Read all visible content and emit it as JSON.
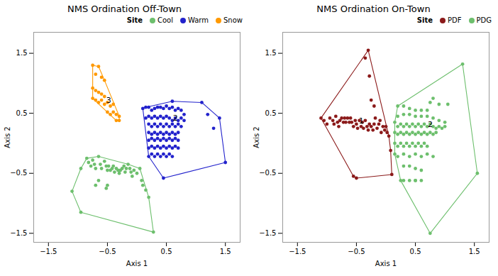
{
  "chart_data": [
    {
      "type": "scatter",
      "title": "NMS Ordination Off-Town",
      "xlabel": "Axis 1",
      "ylabel": "Axis 2",
      "xlim": [
        -1.75,
        1.75
      ],
      "ylim": [
        -1.65,
        1.85
      ],
      "xticks": [
        -1.5,
        -0.5,
        0.5,
        1.5
      ],
      "yticks": [
        -1.5,
        -0.5,
        0.5,
        1.5
      ],
      "legend": "upper right",
      "legend_title": "Site",
      "series": [
        {
          "name": "Cool",
          "color": "#6dbf6d",
          "x": [
            -1.1,
            -0.95,
            -0.85,
            -0.82,
            -0.78,
            -0.75,
            -0.72,
            -0.7,
            -0.65,
            -0.62,
            -0.6,
            -0.55,
            -0.52,
            -0.5,
            -0.48,
            -0.45,
            -0.42,
            -0.4,
            -0.38,
            -0.35,
            -0.32,
            -0.3,
            -0.28,
            -0.25,
            -0.22,
            -0.2,
            -0.18,
            -0.15,
            -0.12,
            -0.1,
            -0.08,
            -0.05,
            0.0,
            0.05,
            0.08,
            0.1,
            0.15,
            0.2,
            -0.7,
            -0.65,
            -0.5,
            -0.52,
            -0.95,
            0.28
          ],
          "y": [
            -0.8,
            -0.42,
            -0.25,
            -0.32,
            -0.38,
            -0.28,
            -0.35,
            -0.42,
            -0.22,
            -0.35,
            -0.42,
            -0.3,
            -0.38,
            -0.45,
            -0.38,
            -0.45,
            -0.42,
            -0.38,
            -0.48,
            -0.42,
            -0.45,
            -0.5,
            -0.45,
            -0.42,
            -0.38,
            -0.48,
            -0.42,
            -0.35,
            -0.42,
            -0.48,
            -0.55,
            -0.45,
            -0.5,
            -0.42,
            -0.62,
            -0.7,
            -0.78,
            -0.9,
            -0.7,
            -0.62,
            -0.7,
            -0.75,
            -1.15,
            -1.48
          ]
        },
        {
          "name": "Warm",
          "color": "#2222cc",
          "x": [
            0.1,
            0.15,
            0.2,
            0.25,
            0.3,
            0.35,
            0.4,
            0.45,
            0.5,
            0.55,
            0.6,
            0.65,
            0.7,
            0.75,
            0.8,
            0.15,
            0.2,
            0.25,
            0.3,
            0.35,
            0.4,
            0.45,
            0.5,
            0.55,
            0.6,
            0.65,
            0.7,
            0.75,
            0.8,
            0.2,
            0.25,
            0.3,
            0.35,
            0.4,
            0.45,
            0.5,
            0.55,
            0.6,
            0.65,
            0.7,
            0.75,
            0.2,
            0.25,
            0.3,
            0.35,
            0.4,
            0.45,
            0.5,
            0.55,
            0.6,
            0.65,
            0.7,
            0.2,
            0.25,
            0.3,
            0.35,
            0.4,
            0.45,
            0.5,
            0.55,
            0.6,
            0.65,
            0.7,
            0.2,
            0.25,
            0.3,
            0.35,
            0.4,
            0.45,
            0.5,
            0.55,
            0.6,
            0.65,
            0.7,
            0.2,
            0.25,
            0.3,
            0.35,
            0.4,
            0.45,
            0.5,
            0.55,
            0.6,
            1.1,
            1.2,
            1.3,
            1.4,
            1.5,
            0.45,
            0.6
          ],
          "y": [
            0.58,
            0.6,
            0.6,
            0.55,
            0.58,
            0.6,
            0.6,
            0.58,
            0.62,
            0.58,
            0.6,
            0.55,
            0.58,
            0.55,
            0.48,
            0.42,
            0.45,
            0.42,
            0.45,
            0.42,
            0.45,
            0.42,
            0.45,
            0.42,
            0.38,
            0.42,
            0.38,
            0.42,
            0.38,
            0.32,
            0.28,
            0.32,
            0.28,
            0.32,
            0.28,
            0.32,
            0.28,
            0.32,
            0.28,
            0.32,
            0.28,
            0.18,
            0.15,
            0.18,
            0.15,
            0.18,
            0.15,
            0.18,
            0.15,
            0.18,
            0.15,
            0.18,
            0.05,
            0.08,
            0.05,
            0.08,
            0.05,
            0.08,
            0.05,
            0.08,
            0.05,
            0.08,
            0.05,
            -0.08,
            -0.05,
            -0.08,
            -0.05,
            -0.08,
            -0.05,
            -0.08,
            -0.05,
            -0.08,
            -0.05,
            -0.08,
            -0.22,
            -0.18,
            -0.22,
            -0.18,
            -0.22,
            -0.18,
            -0.22,
            -0.18,
            -0.22,
            0.68,
            0.48,
            0.25,
            0.42,
            -0.32,
            -0.58,
            0.7
          ]
        },
        {
          "name": "Snow",
          "color": "#ff9900",
          "x": [
            -0.75,
            -0.65,
            -0.7,
            -0.6,
            -0.55,
            -0.75,
            -0.7,
            -0.65,
            -0.6,
            -0.55,
            -0.75,
            -0.7,
            -0.65,
            -0.6,
            -0.55,
            -0.5,
            -0.45,
            -0.4,
            -0.5,
            -0.45,
            -0.4,
            -0.35,
            -0.3,
            -0.35,
            -0.3
          ],
          "y": [
            1.3,
            1.28,
            1.15,
            1.1,
            1.05,
            0.92,
            0.88,
            0.85,
            0.82,
            0.78,
            0.75,
            0.72,
            0.68,
            0.72,
            0.65,
            0.68,
            0.62,
            0.65,
            0.52,
            0.48,
            0.52,
            0.48,
            0.45,
            0.38,
            0.38
          ]
        }
      ],
      "centroids": [
        {
          "x": 0.55,
          "y": 0.32,
          "label": "2"
        },
        {
          "x": -0.58,
          "y": 0.62,
          "label": "3"
        }
      ]
    },
    {
      "type": "scatter",
      "title": "NMS Ordination On-Town",
      "xlabel": "Axis 1",
      "ylabel": "Axis 2",
      "xlim": [
        -1.75,
        1.75
      ],
      "ylim": [
        -1.65,
        1.85
      ],
      "xticks": [
        -1.5,
        -0.5,
        0.5,
        1.5
      ],
      "yticks": [
        -1.5,
        -0.5,
        0.5,
        1.5
      ],
      "legend": "upper right",
      "legend_title": "Site",
      "series": [
        {
          "name": "PDF",
          "color": "#8b1a1a",
          "x": [
            -1.1,
            -1.05,
            -1.0,
            -0.95,
            -0.9,
            -0.88,
            -0.85,
            -0.82,
            -0.8,
            -0.78,
            -0.75,
            -0.72,
            -0.7,
            -0.68,
            -0.65,
            -0.62,
            -0.6,
            -0.58,
            -0.55,
            -0.52,
            -0.5,
            -0.48,
            -0.45,
            -0.42,
            -0.4,
            -0.38,
            -0.35,
            -0.32,
            -0.3,
            -0.28,
            -0.25,
            -0.22,
            -0.2,
            -0.18,
            -0.15,
            -0.12,
            -0.1,
            -0.08,
            -0.05,
            -0.02,
            0.0,
            0.02,
            0.05,
            0.08,
            0.1,
            -0.55,
            -0.5,
            -0.35,
            -0.28,
            -0.25,
            -0.2,
            -0.3
          ],
          "y": [
            0.42,
            0.38,
            0.32,
            0.42,
            0.38,
            0.32,
            0.45,
            0.35,
            0.28,
            0.38,
            0.42,
            0.35,
            0.42,
            0.35,
            0.42,
            0.35,
            0.42,
            0.35,
            0.28,
            0.38,
            0.32,
            0.25,
            0.38,
            0.28,
            0.35,
            0.25,
            0.38,
            0.28,
            0.22,
            0.32,
            0.28,
            0.22,
            0.32,
            0.42,
            0.25,
            0.32,
            0.38,
            0.18,
            0.28,
            0.22,
            0.28,
            0.18,
            0.12,
            -0.12,
            -0.52,
            -0.55,
            -0.58,
            1.42,
            1.12,
            0.72,
            0.62,
            1.55
          ]
        },
        {
          "name": "PDG",
          "color": "#6dbf6d",
          "x": [
            0.15,
            0.2,
            0.25,
            0.3,
            0.35,
            0.4,
            0.45,
            0.5,
            0.55,
            0.6,
            0.65,
            0.7,
            0.75,
            0.8,
            0.85,
            0.9,
            0.95,
            1.0,
            0.15,
            0.2,
            0.25,
            0.3,
            0.35,
            0.4,
            0.45,
            0.5,
            0.55,
            0.6,
            0.65,
            0.7,
            0.75,
            0.8,
            0.85,
            0.15,
            0.2,
            0.25,
            0.3,
            0.35,
            0.4,
            0.45,
            0.5,
            0.55,
            0.6,
            0.65,
            0.7,
            0.15,
            0.2,
            0.3,
            0.4,
            0.5,
            0.6,
            0.7,
            0.8,
            0.3,
            0.4,
            0.5,
            0.6,
            0.2,
            0.3,
            0.4,
            0.5,
            0.6,
            0.7,
            0.8,
            0.9,
            1.0,
            0.2,
            0.3,
            0.4,
            0.5,
            0.6,
            0.7,
            0.5,
            0.6,
            0.75,
            0.8,
            0.9,
            1.05,
            1.3,
            1.55,
            0.75,
            0.5,
            0.25,
            0.3,
            0.4
          ],
          "y": [
            0.35,
            0.28,
            0.32,
            0.28,
            0.32,
            0.28,
            0.32,
            0.28,
            0.32,
            0.28,
            0.32,
            0.28,
            0.32,
            0.28,
            0.25,
            0.28,
            0.25,
            0.28,
            0.18,
            0.15,
            0.18,
            0.15,
            0.18,
            0.15,
            0.18,
            0.15,
            0.18,
            0.15,
            0.18,
            0.15,
            0.18,
            0.15,
            0.18,
            0.0,
            -0.05,
            0.0,
            -0.05,
            0.0,
            -0.05,
            0.0,
            -0.05,
            0.0,
            -0.05,
            0.0,
            -0.05,
            -0.18,
            -0.22,
            -0.18,
            -0.22,
            -0.18,
            -0.22,
            -0.18,
            -0.22,
            -0.38,
            -0.38,
            -0.42,
            -0.45,
            0.45,
            0.48,
            0.48,
            0.45,
            0.45,
            0.45,
            0.42,
            0.38,
            0.35,
            0.62,
            0.62,
            0.58,
            0.55,
            0.55,
            0.55,
            -0.62,
            -0.62,
            0.68,
            0.75,
            0.65,
            0.65,
            1.32,
            -0.5,
            -1.5,
            -0.62,
            -0.62,
            -0.62,
            -0.62
          ]
        }
      ],
      "centroids": [
        {
          "x": -0.52,
          "y": 0.28,
          "label": "1"
        },
        {
          "x": 0.65,
          "y": 0.22,
          "label": "2"
        }
      ]
    }
  ]
}
